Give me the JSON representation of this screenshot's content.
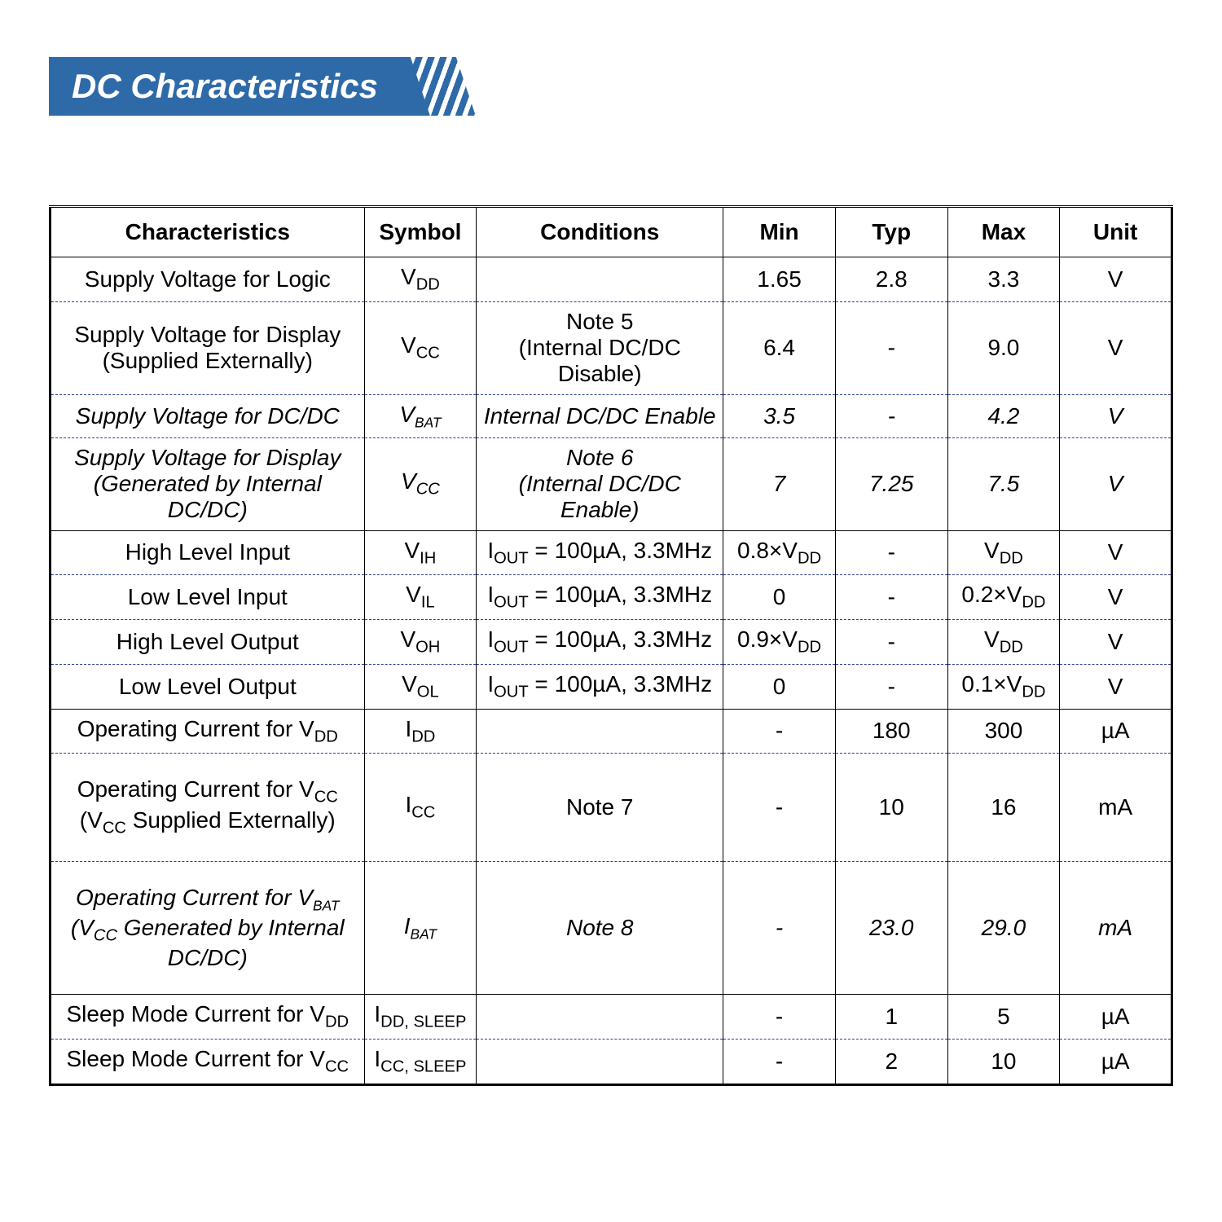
{
  "title": "DC Characteristics",
  "colors": {
    "banner_bg": "#2e6aa8",
    "banner_text": "#ffffff",
    "dash_border": "#2c3e90",
    "solid_border": "#000000",
    "page_bg": "#ffffff"
  },
  "columns": [
    "Characteristics",
    "Symbol",
    "Conditions",
    "Min",
    "Typ",
    "Max",
    "Unit"
  ],
  "column_widths_pct": [
    28,
    10,
    22,
    10,
    10,
    10,
    10
  ],
  "rows": [
    {
      "char": "Supply Voltage for Logic",
      "sym": {
        "base": "V",
        "sub": "DD"
      },
      "cond_lines": [
        ""
      ],
      "min": "1.65",
      "typ": "2.8",
      "max": "3.3",
      "unit": "V",
      "italic": false,
      "tall": false,
      "solid_bottom": false
    },
    {
      "char_lines": [
        "Supply Voltage for Display",
        "(Supplied Externally)"
      ],
      "sym": {
        "base": "V",
        "sub": "CC"
      },
      "cond_lines": [
        "Note 5",
        "(Internal DC/DC Disable)"
      ],
      "min": "6.4",
      "typ": "-",
      "max": "9.0",
      "unit": "V",
      "italic": false,
      "tall": false,
      "solid_bottom": false
    },
    {
      "char": "Supply Voltage for DC/DC",
      "sym": {
        "base": "V",
        "sub": "BAT",
        "small": true
      },
      "cond_lines": [
        "Internal DC/DC Enable"
      ],
      "min": "3.5",
      "typ": "-",
      "max": "4.2",
      "unit": "V",
      "italic": true,
      "tall": false,
      "solid_bottom": false
    },
    {
      "char_lines": [
        "Supply Voltage for Display",
        "(Generated by Internal DC/DC)"
      ],
      "sym": {
        "base": "V",
        "sub": "CC"
      },
      "cond_lines": [
        "Note 6",
        "(Internal DC/DC Enable)"
      ],
      "min": "7",
      "typ": "7.25",
      "max": "7.5",
      "unit": "V",
      "italic": true,
      "tall": false,
      "solid_bottom": true
    },
    {
      "char": "High Level Input",
      "sym": {
        "base": "V",
        "sub": "IH"
      },
      "cond_iout": true,
      "min_expr": {
        "coef": "0.8×",
        "base": "V",
        "sub": "DD"
      },
      "typ": "-",
      "max_expr": {
        "base": "V",
        "sub": "DD"
      },
      "unit": "V",
      "italic": false,
      "tall": false,
      "solid_bottom": false
    },
    {
      "char": "Low Level Input",
      "sym": {
        "base": "V",
        "sub": "IL"
      },
      "cond_iout": true,
      "min": "0",
      "typ": "-",
      "max_expr": {
        "coef": "0.2×",
        "base": "V",
        "sub": "DD"
      },
      "unit": "V",
      "italic": false,
      "tall": false,
      "solid_bottom": false
    },
    {
      "char": "High Level Output",
      "sym": {
        "base": "V",
        "sub": "OH"
      },
      "cond_iout": true,
      "min_expr": {
        "coef": "0.9×",
        "base": "V",
        "sub": "DD"
      },
      "typ": "-",
      "max_expr": {
        "base": "V",
        "sub": "DD"
      },
      "unit": "V",
      "italic": false,
      "tall": false,
      "solid_bottom": false
    },
    {
      "char": "Low Level Output",
      "sym": {
        "base": "V",
        "sub": "OL"
      },
      "cond_iout": true,
      "min": "0",
      "typ": "-",
      "max_expr": {
        "coef": "0.1×",
        "base": "V",
        "sub": "DD"
      },
      "unit": "V",
      "italic": false,
      "tall": false,
      "solid_bottom": true
    },
    {
      "char_expr": {
        "pre": "Operating Current for ",
        "base": "V",
        "sub": "DD"
      },
      "sym": {
        "base": "I",
        "sub": "DD"
      },
      "cond_lines": [
        ""
      ],
      "min": "-",
      "typ": "180",
      "max": "300",
      "unit": "µA",
      "italic": false,
      "tall": false,
      "solid_bottom": false
    },
    {
      "char_lines_expr": [
        {
          "pre": "Operating Current for ",
          "base": "V",
          "sub": "CC"
        },
        {
          "pre": "(",
          "base": "V",
          "sub": "CC",
          "post": " Supplied Externally)"
        }
      ],
      "sym": {
        "base": "I",
        "sub": "CC"
      },
      "cond_lines": [
        "Note 7"
      ],
      "min": "-",
      "typ": "10",
      "max": "16",
      "unit": "mA",
      "italic": false,
      "tall": true,
      "solid_bottom": false
    },
    {
      "char_lines_expr": [
        {
          "pre": "Operating Current for ",
          "base": "V",
          "sub": "BAT",
          "small": true
        },
        {
          "pre": "(",
          "base": "V",
          "sub": "CC",
          "post": " Generated by Internal DC/DC)"
        }
      ],
      "sym": {
        "base": "I",
        "sub": "BAT",
        "small": true
      },
      "cond_lines": [
        "Note 8"
      ],
      "min": "-",
      "typ": "23.0",
      "max": "29.0",
      "unit": "mA",
      "italic": true,
      "tall": true,
      "solid_bottom": true
    },
    {
      "char_expr": {
        "pre": "Sleep Mode Current for ",
        "base": "V",
        "sub": "DD"
      },
      "sym": {
        "base": "I",
        "sub": "DD, SLEEP"
      },
      "cond_lines": [
        ""
      ],
      "min": "-",
      "typ": "1",
      "max": "5",
      "unit": "µA",
      "italic": false,
      "tall": false,
      "solid_bottom": false
    },
    {
      "char_expr": {
        "pre": "Sleep Mode Current for ",
        "base": "V",
        "sub": "CC"
      },
      "sym": {
        "base": "I",
        "sub": "CC, SLEEP"
      },
      "cond_lines": [
        ""
      ],
      "min": "-",
      "typ": "2",
      "max": "10",
      "unit": "µA",
      "italic": false,
      "tall": false,
      "solid_bottom": true
    }
  ],
  "cond_iout_parts": {
    "base": "I",
    "sub": "OUT",
    "rest": " = 100µA, 3.3MHz"
  }
}
